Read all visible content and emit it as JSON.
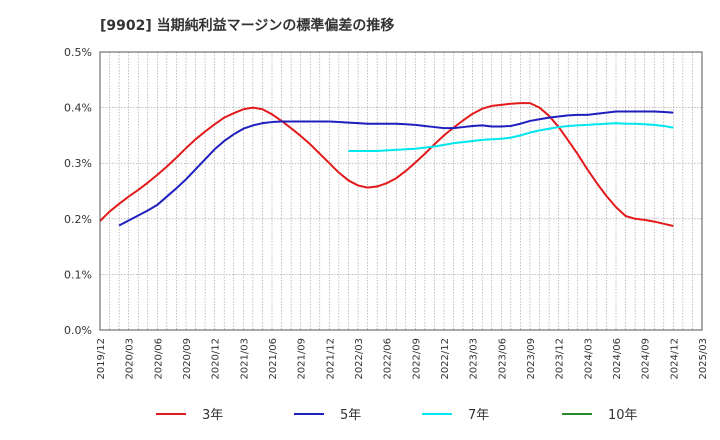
{
  "chart_data": {
    "type": "line",
    "title": "[9902]  当期純利益マージンの標準偏差の推移",
    "xlabel": "",
    "ylabel": "",
    "ylim": [
      0,
      0.5
    ],
    "yticks": [
      0.0,
      0.1,
      0.2,
      0.3,
      0.4,
      0.5
    ],
    "ytick_labels": [
      "0.0%",
      "0.1%",
      "0.2%",
      "0.3%",
      "0.4%",
      "0.5%"
    ],
    "x_ticks": [
      "2019/12",
      "2020/03",
      "2020/06",
      "2020/09",
      "2020/12",
      "2021/03",
      "2021/06",
      "2021/09",
      "2021/12",
      "2022/03",
      "2022/06",
      "2022/09",
      "2022/12",
      "2023/03",
      "2023/06",
      "2023/09",
      "2023/12",
      "2024/03",
      "2024/06",
      "2024/09",
      "2024/12",
      "2025/03"
    ],
    "grid": true,
    "legend_position": "bottom",
    "series": [
      {
        "name": "3年",
        "color": "#e31a1c",
        "points": [
          [
            "2019/12",
            0.196
          ],
          [
            "2020/01",
            0.213
          ],
          [
            "2020/02",
            0.227
          ],
          [
            "2020/03",
            0.24
          ],
          [
            "2020/04",
            0.252
          ],
          [
            "2020/05",
            0.265
          ],
          [
            "2020/06",
            0.279
          ],
          [
            "2020/07",
            0.294
          ],
          [
            "2020/08",
            0.31
          ],
          [
            "2020/09",
            0.327
          ],
          [
            "2020/10",
            0.343
          ],
          [
            "2020/11",
            0.357
          ],
          [
            "2020/12",
            0.37
          ],
          [
            "2021/01",
            0.382
          ],
          [
            "2021/02",
            0.39
          ],
          [
            "2021/03",
            0.397
          ],
          [
            "2021/04",
            0.4
          ],
          [
            "2021/05",
            0.397
          ],
          [
            "2021/06",
            0.388
          ],
          [
            "2021/07",
            0.376
          ],
          [
            "2021/08",
            0.363
          ],
          [
            "2021/09",
            0.349
          ],
          [
            "2021/10",
            0.334
          ],
          [
            "2021/11",
            0.317
          ],
          [
            "2021/12",
            0.3
          ],
          [
            "2022/01",
            0.283
          ],
          [
            "2022/02",
            0.269
          ],
          [
            "2022/03",
            0.26
          ],
          [
            "2022/04",
            0.256
          ],
          [
            "2022/05",
            0.258
          ],
          [
            "2022/06",
            0.264
          ],
          [
            "2022/07",
            0.273
          ],
          [
            "2022/08",
            0.286
          ],
          [
            "2022/09",
            0.301
          ],
          [
            "2022/10",
            0.317
          ],
          [
            "2022/11",
            0.334
          ],
          [
            "2022/12",
            0.35
          ],
          [
            "2023/01",
            0.364
          ],
          [
            "2023/02",
            0.377
          ],
          [
            "2023/03",
            0.389
          ],
          [
            "2023/04",
            0.398
          ],
          [
            "2023/05",
            0.403
          ],
          [
            "2023/06",
            0.405
          ],
          [
            "2023/07",
            0.407
          ],
          [
            "2023/08",
            0.408
          ],
          [
            "2023/09",
            0.408
          ],
          [
            "2023/10",
            0.4
          ],
          [
            "2023/11",
            0.385
          ],
          [
            "2023/12",
            0.365
          ],
          [
            "2024/01",
            0.341
          ],
          [
            "2024/02",
            0.316
          ],
          [
            "2024/03",
            0.289
          ],
          [
            "2024/04",
            0.264
          ],
          [
            "2024/05",
            0.241
          ],
          [
            "2024/06",
            0.221
          ],
          [
            "2024/07",
            0.205
          ],
          [
            "2024/08",
            0.2
          ],
          [
            "2024/09",
            0.198
          ],
          [
            "2024/10",
            0.195
          ],
          [
            "2024/11",
            0.191
          ],
          [
            "2024/12",
            0.187
          ]
        ]
      },
      {
        "name": "5年",
        "color": "#1f1fbf",
        "points": [
          [
            "2020/02",
            0.188
          ],
          [
            "2020/03",
            0.197
          ],
          [
            "2020/04",
            0.206
          ],
          [
            "2020/05",
            0.215
          ],
          [
            "2020/06",
            0.225
          ],
          [
            "2020/07",
            0.24
          ],
          [
            "2020/08",
            0.255
          ],
          [
            "2020/09",
            0.271
          ],
          [
            "2020/10",
            0.289
          ],
          [
            "2020/11",
            0.307
          ],
          [
            "2020/12",
            0.325
          ],
          [
            "2021/01",
            0.34
          ],
          [
            "2021/02",
            0.352
          ],
          [
            "2021/03",
            0.362
          ],
          [
            "2021/04",
            0.368
          ],
          [
            "2021/05",
            0.372
          ],
          [
            "2021/06",
            0.374
          ],
          [
            "2021/07",
            0.375
          ],
          [
            "2021/08",
            0.375
          ],
          [
            "2021/09",
            0.375
          ],
          [
            "2021/10",
            0.375
          ],
          [
            "2021/11",
            0.375
          ],
          [
            "2021/12",
            0.375
          ],
          [
            "2022/01",
            0.374
          ],
          [
            "2022/02",
            0.373
          ],
          [
            "2022/03",
            0.372
          ],
          [
            "2022/04",
            0.371
          ],
          [
            "2022/05",
            0.371
          ],
          [
            "2022/06",
            0.371
          ],
          [
            "2022/07",
            0.371
          ],
          [
            "2022/08",
            0.37
          ],
          [
            "2022/09",
            0.369
          ],
          [
            "2022/10",
            0.367
          ],
          [
            "2022/11",
            0.365
          ],
          [
            "2022/12",
            0.363
          ],
          [
            "2023/01",
            0.363
          ],
          [
            "2023/02",
            0.365
          ],
          [
            "2023/03",
            0.367
          ],
          [
            "2023/04",
            0.368
          ],
          [
            "2023/05",
            0.366
          ],
          [
            "2023/06",
            0.366
          ],
          [
            "2023/07",
            0.367
          ],
          [
            "2023/08",
            0.371
          ],
          [
            "2023/09",
            0.376
          ],
          [
            "2023/10",
            0.379
          ],
          [
            "2023/11",
            0.382
          ],
          [
            "2023/12",
            0.384
          ],
          [
            "2024/01",
            0.386
          ],
          [
            "2024/02",
            0.387
          ],
          [
            "2024/03",
            0.387
          ],
          [
            "2024/04",
            0.389
          ],
          [
            "2024/05",
            0.391
          ],
          [
            "2024/06",
            0.393
          ],
          [
            "2024/07",
            0.393
          ],
          [
            "2024/08",
            0.393
          ],
          [
            "2024/09",
            0.393
          ],
          [
            "2024/10",
            0.393
          ],
          [
            "2024/11",
            0.392
          ],
          [
            "2024/12",
            0.391
          ]
        ]
      },
      {
        "name": "7年",
        "color": "#00e5ee",
        "points": [
          [
            "2022/02",
            0.322
          ],
          [
            "2022/03",
            0.322
          ],
          [
            "2022/04",
            0.322
          ],
          [
            "2022/05",
            0.322
          ],
          [
            "2022/06",
            0.323
          ],
          [
            "2022/07",
            0.324
          ],
          [
            "2022/08",
            0.325
          ],
          [
            "2022/09",
            0.326
          ],
          [
            "2022/10",
            0.328
          ],
          [
            "2022/11",
            0.33
          ],
          [
            "2022/12",
            0.333
          ],
          [
            "2023/01",
            0.336
          ],
          [
            "2023/02",
            0.338
          ],
          [
            "2023/03",
            0.34
          ],
          [
            "2023/04",
            0.342
          ],
          [
            "2023/05",
            0.343
          ],
          [
            "2023/06",
            0.344
          ],
          [
            "2023/07",
            0.346
          ],
          [
            "2023/08",
            0.35
          ],
          [
            "2023/09",
            0.355
          ],
          [
            "2023/10",
            0.359
          ],
          [
            "2023/11",
            0.362
          ],
          [
            "2023/12",
            0.365
          ],
          [
            "2024/01",
            0.367
          ],
          [
            "2024/02",
            0.368
          ],
          [
            "2024/03",
            0.369
          ],
          [
            "2024/04",
            0.37
          ],
          [
            "2024/05",
            0.371
          ],
          [
            "2024/06",
            0.372
          ],
          [
            "2024/07",
            0.371
          ],
          [
            "2024/08",
            0.371
          ],
          [
            "2024/09",
            0.37
          ],
          [
            "2024/10",
            0.369
          ],
          [
            "2024/11",
            0.367
          ],
          [
            "2024/12",
            0.364
          ]
        ]
      },
      {
        "name": "10年",
        "color": "#2a8a2a",
        "points": []
      }
    ]
  }
}
